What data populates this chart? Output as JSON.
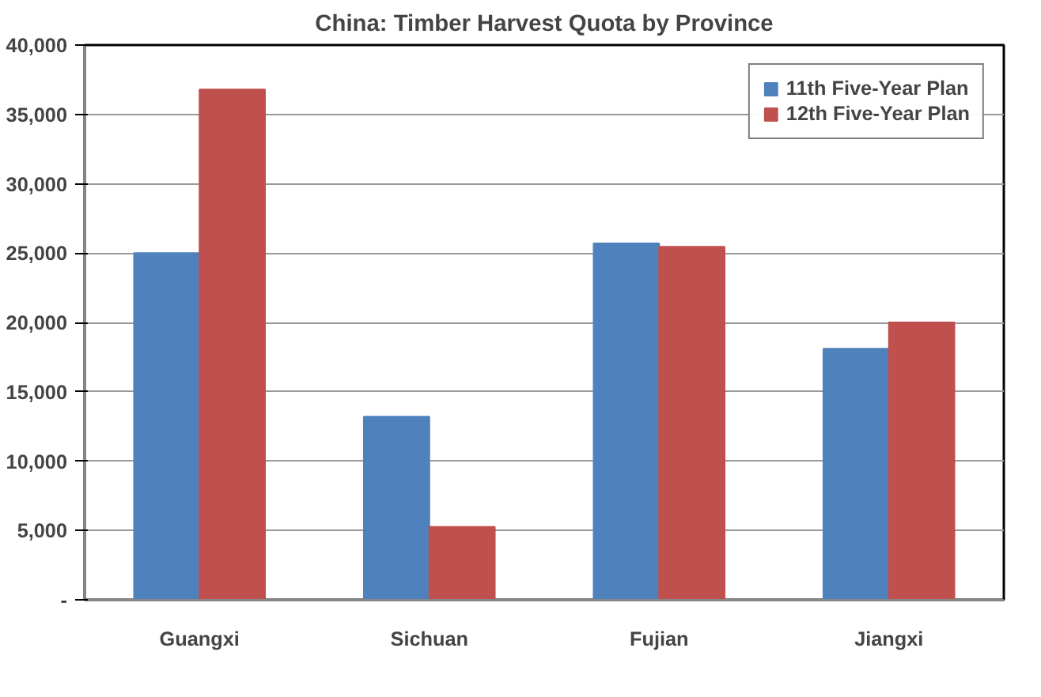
{
  "chart_data": {
    "type": "bar",
    "title": "China: Timber Harvest Quota by Province",
    "categories": [
      "Guangxi",
      "Sichuan",
      "Fujian",
      "Jiangxi"
    ],
    "series": [
      {
        "name": "11th Five-Year Plan",
        "color": "#4f81bd",
        "values": [
          25000,
          13200,
          25700,
          18100
        ]
      },
      {
        "name": "12th Five-Year Plan",
        "color": "#c0504d",
        "values": [
          36800,
          5250,
          25450,
          20000
        ]
      }
    ],
    "ylim": [
      0,
      40000
    ],
    "yticks": [
      {
        "value": 0,
        "label": "-"
      },
      {
        "value": 5000,
        "label": "5,000"
      },
      {
        "value": 10000,
        "label": "10,000"
      },
      {
        "value": 15000,
        "label": "15,000"
      },
      {
        "value": 20000,
        "label": "20,000"
      },
      {
        "value": 25000,
        "label": "25,000"
      },
      {
        "value": 30000,
        "label": "30,000"
      },
      {
        "value": 35000,
        "label": "35,000"
      },
      {
        "value": 40000,
        "label": "40,000"
      }
    ],
    "grid": "y",
    "legend": "top right"
  }
}
